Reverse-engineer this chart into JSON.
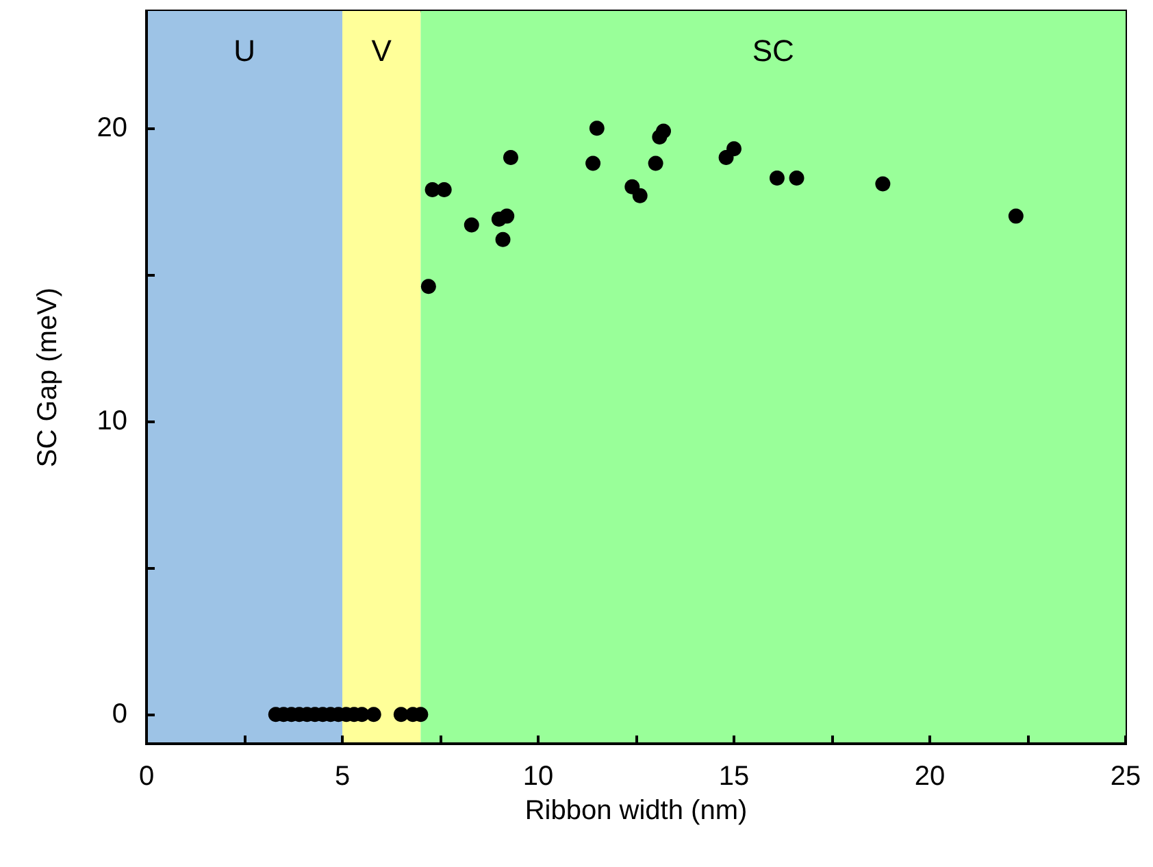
{
  "chart_data": {
    "type": "scatter",
    "xlabel": "Ribbon width (nm)",
    "ylabel": "SC Gap (meV)",
    "x": [
      3.3,
      3.5,
      3.7,
      3.9,
      4.1,
      4.3,
      4.5,
      4.7,
      4.9,
      5.1,
      5.3,
      5.5,
      5.8,
      6.5,
      6.8,
      7.0,
      7.2,
      7.3,
      7.6,
      8.3,
      9.0,
      9.2,
      9.1,
      9.3,
      11.5,
      11.4,
      12.4,
      12.6,
      13.0,
      13.1,
      13.2,
      14.8,
      15.0,
      16.1,
      16.6,
      18.8,
      22.2
    ],
    "values": [
      0,
      0,
      0,
      0,
      0,
      0,
      0,
      0,
      0,
      0,
      0,
      0,
      0,
      0,
      0,
      0,
      14.6,
      17.9,
      17.9,
      16.7,
      16.9,
      17.0,
      16.2,
      19.0,
      20.0,
      18.8,
      18.0,
      17.7,
      18.8,
      19.7,
      19.9,
      19.0,
      19.3,
      18.3,
      18.3,
      18.1,
      17.0
    ],
    "color": "#000000",
    "marker": "circle",
    "xlim": [
      0,
      25
    ],
    "xticks": [
      0,
      {
        "value": 2.5,
        "label": null
      },
      5,
      {
        "value": 7.5,
        "label": null
      },
      10,
      {
        "value": 12.5,
        "label": null
      },
      15,
      {
        "value": 17.5,
        "label": null
      },
      20,
      {
        "value": 22.5,
        "label": null
      },
      25
    ],
    "ylim": [
      -1,
      24
    ],
    "yticks": [
      0,
      {
        "value": 5,
        "label": null
      },
      10,
      {
        "value": 15,
        "label": null
      },
      20
    ],
    "grid": false,
    "bands": [
      {
        "axis": "x",
        "from": 0,
        "to": 5,
        "label": "U",
        "color": "#9dc3e6"
      },
      {
        "axis": "x",
        "from": 5,
        "to": 7,
        "label": "V",
        "color": "#ffff99"
      },
      {
        "axis": "x",
        "from": 7,
        "to": 25,
        "label": "SC",
        "color": "#99ff99"
      }
    ]
  }
}
